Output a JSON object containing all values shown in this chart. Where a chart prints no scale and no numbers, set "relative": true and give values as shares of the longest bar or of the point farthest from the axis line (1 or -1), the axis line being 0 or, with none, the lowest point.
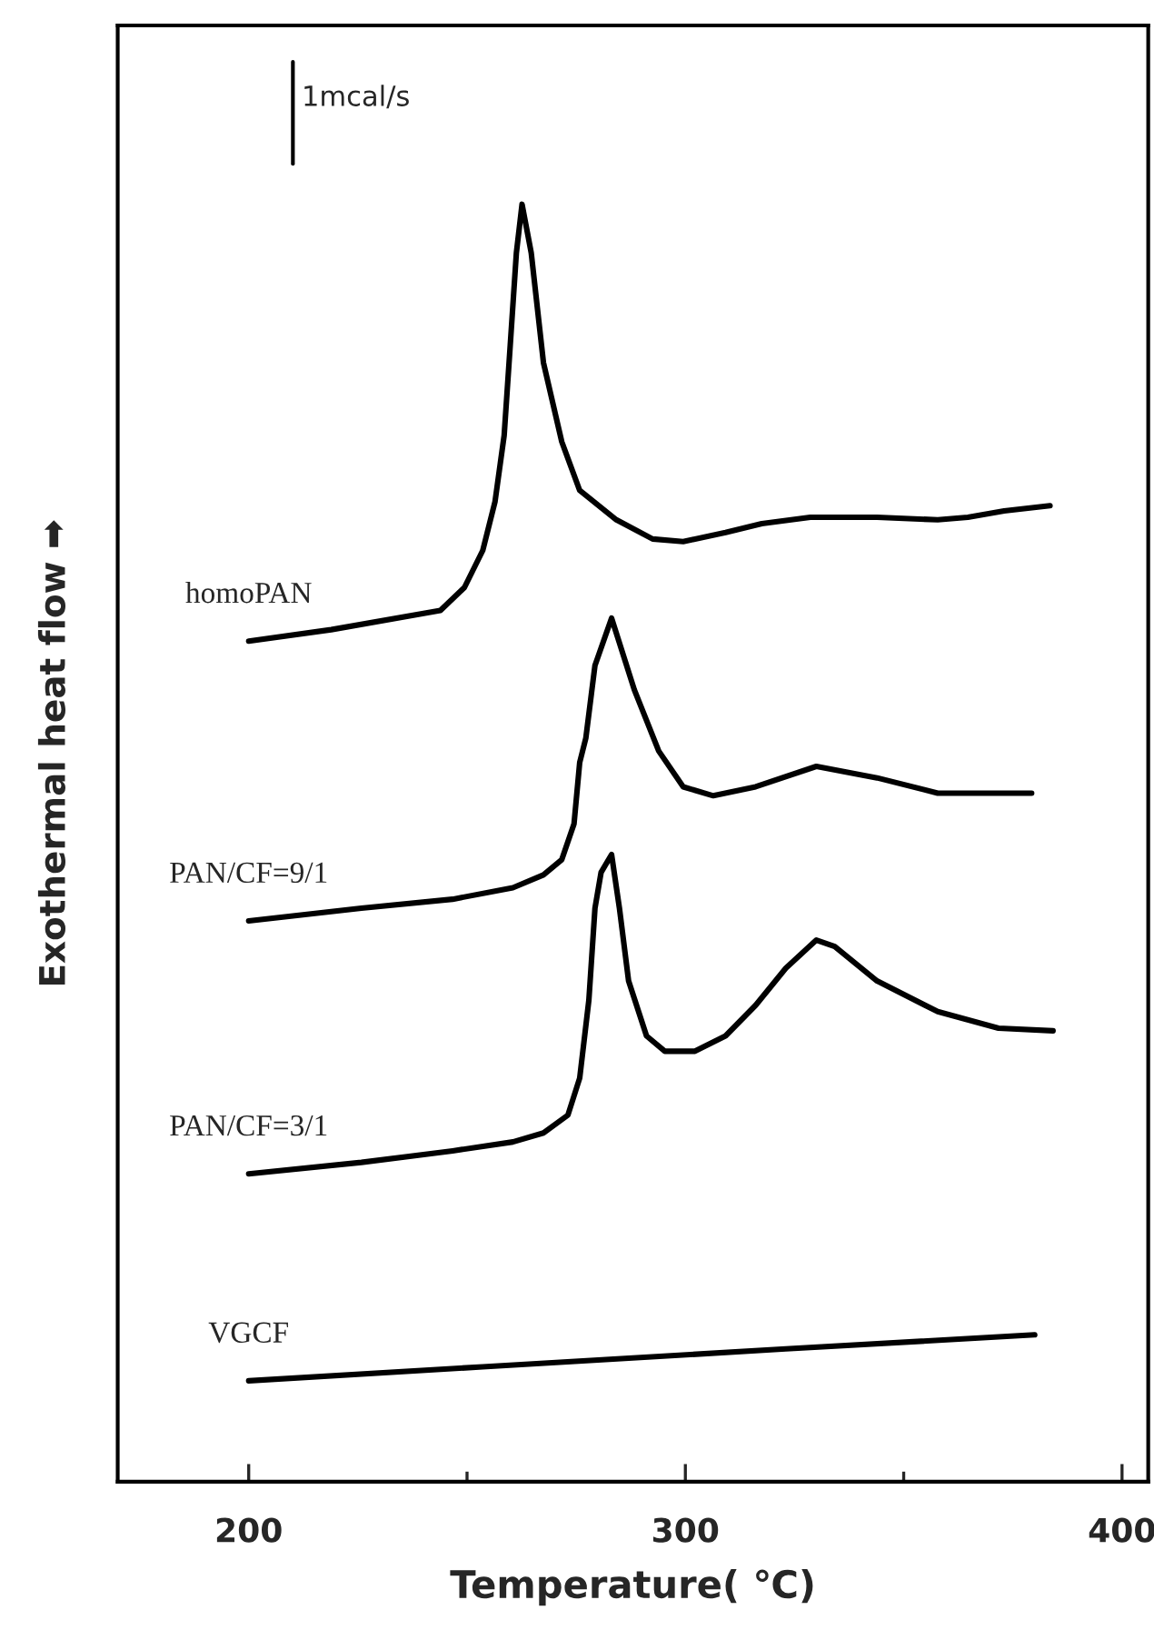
{
  "chart_data": {
    "type": "line",
    "relative": true,
    "xlabel": "Temperature( ℃)",
    "ylabel": "Exothermal heat flow ➡",
    "annotations": [
      "1mcal/s"
    ],
    "xlim": [
      170,
      406
    ],
    "xticks": [
      200,
      {
        "value": 250,
        "label": null
      },
      300,
      {
        "value": 350,
        "label": null
      },
      400
    ],
    "grid": false,
    "legend": false,
    "tick_labels": "x",
    "marker": "none",
    "line_style": "solid",
    "series": [
      {
        "name": "homoPAN",
        "color": "#000000",
        "x": [
          200,
          218.9,
          243.9,
          249.4,
          253.6,
          256.4,
          258.5,
          259.9,
          261.3,
          262.6,
          264.7,
          267.5,
          271.7,
          275.8,
          284.2,
          292.5,
          299.5,
          309.2,
          317.5,
          328.6,
          343.9,
          357.8,
          364.7,
          373.0,
          383.5
        ],
        "values": [
          0.658,
          0.667,
          0.682,
          0.7,
          0.729,
          0.767,
          0.819,
          0.89,
          0.962,
          1.0,
          0.962,
          0.876,
          0.814,
          0.776,
          0.753,
          0.738,
          0.736,
          0.743,
          0.75,
          0.755,
          0.755,
          0.753,
          0.755,
          0.76,
          0.764
        ]
      },
      {
        "name": "PAN/CF=9/1",
        "color": "#000000",
        "x": [
          200,
          225.8,
          246.7,
          260.5,
          267.5,
          271.7,
          274.5,
          275.8,
          277.2,
          279.3,
          283.1,
          288.3,
          293.9,
          299.5,
          306.4,
          316.1,
          330.0,
          343.9,
          357.8,
          379.3
        ],
        "values": [
          0.439,
          0.449,
          0.456,
          0.465,
          0.475,
          0.487,
          0.515,
          0.563,
          0.582,
          0.639,
          0.676,
          0.62,
          0.572,
          0.544,
          0.537,
          0.544,
          0.56,
          0.551,
          0.539,
          0.539
        ]
      },
      {
        "name": "PAN/CF=3/1",
        "color": "#000000",
        "x": [
          200,
          225.8,
          246.7,
          260.5,
          267.5,
          273.1,
          275.8,
          277.9,
          279.3,
          280.7,
          283.1,
          284.9,
          287.0,
          291.1,
          295.3,
          302.2,
          309.2,
          316.1,
          323.0,
          330.0,
          334.2,
          343.9,
          357.8,
          371.7,
          384.2
        ],
        "values": [
          0.241,
          0.25,
          0.259,
          0.266,
          0.273,
          0.287,
          0.316,
          0.377,
          0.449,
          0.477,
          0.491,
          0.449,
          0.392,
          0.349,
          0.337,
          0.337,
          0.349,
          0.373,
          0.402,
          0.424,
          0.419,
          0.392,
          0.368,
          0.355,
          0.353
        ]
      },
      {
        "name": "VGCF",
        "color": "#000000",
        "x": [
          200,
          253.6,
          323.0,
          380.0
        ],
        "values": [
          0.079,
          0.09,
          0.104,
          0.115
        ]
      }
    ]
  }
}
